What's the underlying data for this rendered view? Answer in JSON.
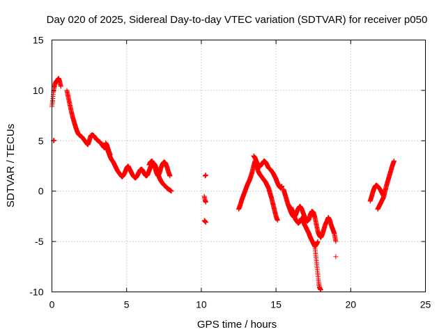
{
  "chart_data": {
    "type": "scatter",
    "title": "Day 020 of 2025, Sidereal Day-to-day VTEC variation (SDTVAR) for receiver p050",
    "xlabel": "GPS time / hours",
    "ylabel": "SDTVAR / TECUs",
    "xlim": [
      0,
      25
    ],
    "ylim": [
      -10,
      15
    ],
    "xticks": [
      0,
      5,
      10,
      15,
      20,
      25
    ],
    "yticks": [
      -10,
      -5,
      0,
      5,
      10,
      15
    ],
    "grid": true,
    "marker": "+",
    "color": "#ff0000",
    "series": [
      {
        "name": "SDTVAR",
        "segments": [
          [
            [
              0.0,
              8.4
            ],
            [
              0.05,
              9.0
            ],
            [
              0.1,
              9.8
            ],
            [
              0.15,
              10.3
            ],
            [
              0.2,
              10.6
            ],
            [
              0.25,
              10.8
            ],
            [
              0.3,
              10.9
            ],
            [
              0.35,
              11.0
            ],
            [
              0.4,
              11.1
            ],
            [
              0.45,
              11.2
            ],
            [
              0.5,
              11.0
            ],
            [
              0.55,
              10.7
            ],
            [
              0.6,
              10.4
            ]
          ],
          [
            [
              0.1,
              5.0
            ],
            [
              0.15,
              5.05
            ]
          ],
          [
            [
              1.0,
              10.0
            ],
            [
              1.1,
              9.3
            ],
            [
              1.2,
              8.6
            ],
            [
              1.3,
              7.9
            ],
            [
              1.4,
              7.3
            ],
            [
              1.5,
              6.8
            ],
            [
              1.6,
              6.3
            ],
            [
              1.7,
              5.9
            ],
            [
              1.8,
              5.6
            ],
            [
              1.9,
              5.5
            ],
            [
              2.0,
              5.4
            ],
            [
              2.1,
              5.2
            ],
            [
              2.2,
              5.0
            ],
            [
              2.3,
              4.8
            ],
            [
              2.4,
              4.6
            ],
            [
              2.5,
              5.0
            ],
            [
              2.6,
              5.5
            ],
            [
              2.7,
              5.6
            ],
            [
              2.8,
              5.5
            ],
            [
              2.9,
              5.3
            ],
            [
              3.0,
              5.1
            ],
            [
              3.1,
              5.0
            ],
            [
              3.2,
              4.9
            ],
            [
              3.3,
              4.7
            ],
            [
              3.4,
              4.5
            ],
            [
              3.5,
              4.3
            ],
            [
              3.6,
              4.4
            ],
            [
              3.7,
              4.2
            ],
            [
              3.8,
              3.8
            ],
            [
              3.9,
              3.4
            ],
            [
              4.0,
              3.1
            ],
            [
              4.1,
              2.9
            ],
            [
              4.2,
              2.6
            ],
            [
              4.3,
              2.3
            ],
            [
              4.4,
              2.0
            ],
            [
              4.5,
              1.8
            ],
            [
              4.6,
              1.6
            ],
            [
              4.7,
              1.4
            ],
            [
              4.8,
              1.6
            ],
            [
              4.9,
              1.9
            ],
            [
              5.0,
              2.3
            ],
            [
              5.1,
              2.5
            ],
            [
              5.2,
              2.2
            ],
            [
              5.3,
              1.9
            ],
            [
              5.4,
              1.6
            ],
            [
              5.5,
              1.4
            ],
            [
              5.6,
              1.3
            ],
            [
              5.7,
              1.5
            ],
            [
              5.8,
              1.8
            ],
            [
              5.9,
              2.1
            ],
            [
              6.0,
              2.2
            ],
            [
              6.1,
              2.0
            ],
            [
              6.2,
              1.7
            ],
            [
              6.3,
              1.5
            ],
            [
              6.4,
              1.6
            ],
            [
              6.5,
              2.0
            ],
            [
              6.6,
              2.4
            ],
            [
              6.7,
              2.7
            ],
            [
              6.8,
              2.8
            ],
            [
              6.9,
              2.6
            ],
            [
              7.0,
              2.2
            ],
            [
              7.1,
              1.7
            ],
            [
              7.2,
              1.3
            ],
            [
              7.3,
              1.0
            ],
            [
              7.4,
              0.8
            ],
            [
              7.5,
              0.6
            ],
            [
              7.6,
              0.5
            ],
            [
              7.7,
              0.3
            ],
            [
              7.8,
              0.2
            ],
            [
              7.9,
              0.1
            ],
            [
              8.0,
              0.0
            ]
          ],
          [
            [
              3.6,
              4.8
            ],
            [
              3.7,
              4.5
            ],
            [
              3.8,
              4.0
            ],
            [
              3.9,
              3.6
            ]
          ],
          [
            [
              6.5,
              2.6
            ],
            [
              6.6,
              2.9
            ],
            [
              6.7,
              3.0
            ],
            [
              6.8,
              2.7
            ],
            [
              6.9,
              2.3
            ],
            [
              7.0,
              1.8
            ],
            [
              7.1,
              1.5
            ],
            [
              7.2,
              1.8
            ],
            [
              7.3,
              2.3
            ],
            [
              7.4,
              2.7
            ],
            [
              7.5,
              2.9
            ],
            [
              7.6,
              2.8
            ],
            [
              7.7,
              2.4
            ],
            [
              7.8,
              1.9
            ],
            [
              7.9,
              1.5
            ]
          ],
          [
            [
              10.25,
              1.5
            ],
            [
              10.3,
              1.6
            ]
          ],
          [
            [
              10.2,
              -0.5
            ],
            [
              10.25,
              -0.9
            ],
            [
              10.3,
              -1.1
            ]
          ],
          [
            [
              10.2,
              -2.9
            ],
            [
              10.25,
              -3.0
            ],
            [
              10.3,
              -3.1
            ]
          ],
          [
            [
              12.5,
              -1.8
            ],
            [
              12.6,
              -1.4
            ],
            [
              12.7,
              -0.9
            ],
            [
              12.8,
              -0.5
            ],
            [
              12.9,
              -0.1
            ],
            [
              13.0,
              0.3
            ],
            [
              13.1,
              0.7
            ],
            [
              13.2,
              1.0
            ],
            [
              13.3,
              1.4
            ],
            [
              13.4,
              1.9
            ],
            [
              13.5,
              2.5
            ],
            [
              13.6,
              3.0
            ],
            [
              13.7,
              2.5
            ],
            [
              13.8,
              2.0
            ],
            [
              13.9,
              1.7
            ],
            [
              14.0,
              1.5
            ],
            [
              14.1,
              1.3
            ],
            [
              14.2,
              1.1
            ],
            [
              14.3,
              0.9
            ],
            [
              14.4,
              0.6
            ],
            [
              14.5,
              0.3
            ],
            [
              14.6,
              -0.2
            ],
            [
              14.7,
              -0.7
            ],
            [
              14.8,
              -1.3
            ],
            [
              14.9,
              -1.9
            ],
            [
              15.0,
              -2.5
            ],
            [
              15.1,
              -2.9
            ]
          ],
          [
            [
              13.5,
              3.5
            ],
            [
              13.6,
              3.3
            ],
            [
              13.7,
              2.9
            ],
            [
              13.8,
              2.6
            ],
            [
              13.9,
              2.4
            ],
            [
              14.0,
              2.6
            ],
            [
              14.1,
              2.8
            ],
            [
              14.2,
              3.0
            ],
            [
              14.3,
              2.9
            ],
            [
              14.4,
              2.6
            ],
            [
              14.5,
              2.3
            ],
            [
              14.6,
              2.2
            ],
            [
              14.7,
              2.0
            ],
            [
              14.8,
              1.8
            ],
            [
              14.9,
              1.5
            ],
            [
              15.0,
              1.2
            ],
            [
              15.1,
              0.8
            ],
            [
              15.2,
              0.5
            ],
            [
              15.3,
              0.3
            ],
            [
              15.4,
              0.5
            ]
          ],
          [
            [
              15.5,
              0.2
            ],
            [
              15.6,
              -0.3
            ],
            [
              15.7,
              -0.8
            ],
            [
              15.8,
              -1.3
            ],
            [
              15.9,
              -1.7
            ],
            [
              16.0,
              -2.1
            ],
            [
              16.1,
              -2.4
            ],
            [
              16.2,
              -2.6
            ],
            [
              16.3,
              -2.4
            ],
            [
              16.4,
              -2.0
            ],
            [
              16.5,
              -1.7
            ],
            [
              16.6,
              -1.5
            ],
            [
              16.7,
              -1.7
            ],
            [
              16.8,
              -2.1
            ],
            [
              16.9,
              -2.5
            ],
            [
              17.0,
              -2.8
            ],
            [
              17.1,
              -3.0
            ],
            [
              17.2,
              -2.8
            ],
            [
              17.3,
              -2.3
            ],
            [
              17.4,
              -2.0
            ],
            [
              17.5,
              -2.1
            ],
            [
              17.6,
              -2.6
            ],
            [
              17.7,
              -3.3
            ],
            [
              17.8,
              -4.0
            ],
            [
              17.9,
              -4.4
            ],
            [
              18.0,
              -4.6
            ],
            [
              18.1,
              -4.3
            ],
            [
              18.2,
              -3.8
            ],
            [
              18.3,
              -3.3
            ],
            [
              18.4,
              -3.0
            ],
            [
              18.5,
              -2.6
            ],
            [
              18.6,
              -2.9
            ],
            [
              18.7,
              -3.4
            ],
            [
              18.8,
              -3.8
            ],
            [
              18.9,
              -4.2
            ],
            [
              19.0,
              -5.0
            ]
          ],
          [
            [
              16.0,
              -1.6
            ],
            [
              16.1,
              -2.0
            ],
            [
              16.2,
              -2.4
            ],
            [
              16.3,
              -2.8
            ],
            [
              16.4,
              -3.0
            ],
            [
              16.5,
              -3.2
            ],
            [
              16.6,
              -3.0
            ],
            [
              16.7,
              -2.7
            ],
            [
              16.8,
              -2.9
            ],
            [
              16.9,
              -3.3
            ],
            [
              17.0,
              -3.6
            ],
            [
              17.1,
              -3.9
            ],
            [
              17.2,
              -4.2
            ],
            [
              17.3,
              -4.6
            ],
            [
              17.4,
              -4.9
            ],
            [
              17.5,
              -5.2
            ],
            [
              17.6,
              -5.5
            ],
            [
              17.7,
              -5.3
            ],
            [
              17.8,
              -5.0
            ]
          ],
          [
            [
              17.6,
              -5.5
            ],
            [
              17.65,
              -6.2
            ],
            [
              17.7,
              -6.9
            ],
            [
              17.75,
              -7.6
            ],
            [
              17.8,
              -8.3
            ],
            [
              17.85,
              -9.0
            ],
            [
              17.9,
              -9.5
            ],
            [
              17.95,
              -9.7
            ],
            [
              18.0,
              -9.8
            ]
          ],
          [
            [
              19.0,
              -6.5
            ]
          ],
          [
            [
              21.3,
              -1.0
            ],
            [
              21.4,
              -0.5
            ],
            [
              21.5,
              0.0
            ],
            [
              21.6,
              0.4
            ],
            [
              21.7,
              0.6
            ],
            [
              21.8,
              0.5
            ],
            [
              21.9,
              0.3
            ],
            [
              22.0,
              0.1
            ],
            [
              22.1,
              -0.2
            ],
            [
              22.2,
              -0.5
            ]
          ],
          [
            [
              21.8,
              -1.8
            ],
            [
              21.9,
              -1.5
            ],
            [
              22.0,
              -1.2
            ],
            [
              22.1,
              -0.9
            ],
            [
              22.2,
              -0.6
            ],
            [
              22.3,
              0.0
            ],
            [
              22.4,
              0.6
            ],
            [
              22.5,
              1.1
            ],
            [
              22.6,
              1.6
            ],
            [
              22.7,
              2.1
            ],
            [
              22.8,
              2.6
            ],
            [
              22.9,
              3.0
            ]
          ]
        ]
      }
    ]
  }
}
